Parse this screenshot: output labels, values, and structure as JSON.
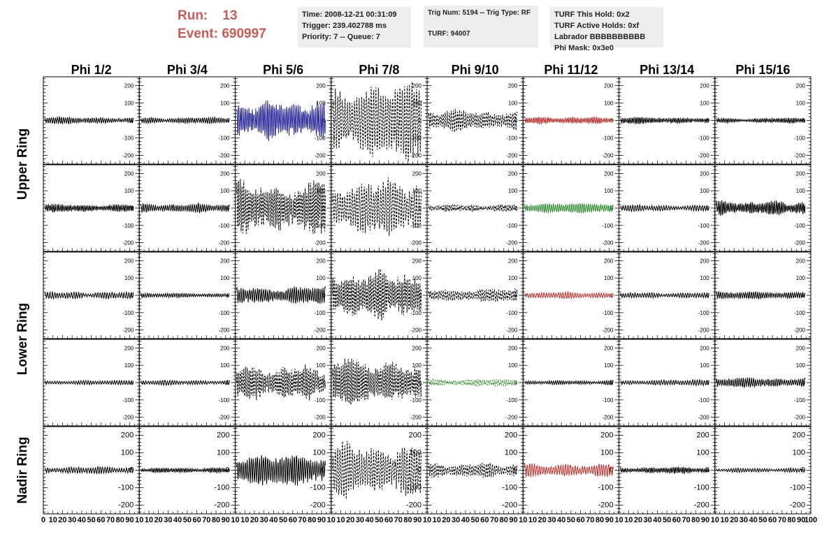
{
  "header": {
    "run_label": "Run:",
    "run_value": "13",
    "event_label": "Event:",
    "event_value": "690997",
    "time": "Time: 2008-12-21 00:31:09",
    "trigger": "Trigger: 239.402788 ms",
    "priority": "Priority: 7 -- Queue: 7",
    "trig_num": "Trig Num: 5194 -- Trig Type: RF",
    "turf": "TURF: 94007",
    "turf_hold": "TURF This Hold: 0x2",
    "turf_active": "TURF Active Holds: 0xf",
    "labrador": "Labrador BBBBBBBBBB",
    "phi_mask": "Phi Mask: 0x3e0"
  },
  "chart_data": {
    "type": "line",
    "columns": [
      "Phi 1/2",
      "Phi 3/4",
      "Phi 5/6",
      "Phi 7/8",
      "Phi 9/10",
      "Phi 11/12",
      "Phi 13/14",
      "Phi 15/16"
    ],
    "rows": [
      "Upper Ring",
      "Lower Ring",
      "Nadir Ring"
    ],
    "xlim": [
      0,
      100
    ],
    "ylim": [
      -250,
      250
    ],
    "y_ticks": [
      -200,
      -100,
      0,
      100,
      200
    ],
    "x_ticks": [
      0,
      10,
      20,
      30,
      40,
      50,
      60,
      70,
      80,
      90,
      100
    ],
    "x_tick_labels": [
      "0",
      "10",
      "20",
      "30",
      "40",
      "50",
      "60",
      "70",
      "80",
      "90",
      "100"
    ],
    "panel_x_tick_labels": [
      "10",
      "20",
      "30",
      "40",
      "50",
      "60",
      "70",
      "80",
      "90",
      "10"
    ],
    "colors": {
      "solid": "#000000",
      "blue": "#2a2a9a",
      "red": "#c0302c",
      "green": "#2e8b2e"
    },
    "panels": [
      [
        {
          "a": 20,
          "s": "solid",
          "c": "solid"
        },
        {
          "a": 18,
          "s": "solid",
          "c": "solid"
        },
        {
          "a": 110,
          "s": "solid",
          "c": "blue"
        },
        {
          "a": 210,
          "s": "dashed",
          "c": "solid"
        },
        {
          "a": 60,
          "s": "dashed",
          "c": "solid"
        },
        {
          "a": 20,
          "s": "solid",
          "c": "red"
        },
        {
          "a": 18,
          "s": "solid",
          "c": "solid"
        },
        {
          "a": 14,
          "s": "solid",
          "c": "solid"
        }
      ],
      [
        {
          "a": 22,
          "s": "solid",
          "c": "solid"
        },
        {
          "a": 25,
          "s": "solid",
          "c": "solid"
        },
        {
          "a": 170,
          "s": "dashed",
          "c": "solid"
        },
        {
          "a": 160,
          "s": "dashed",
          "c": "solid"
        },
        {
          "a": 20,
          "s": "dashed",
          "c": "solid"
        },
        {
          "a": 28,
          "s": "solid",
          "c": "green"
        },
        {
          "a": 18,
          "s": "solid",
          "c": "solid"
        },
        {
          "a": 40,
          "s": "solid",
          "c": "solid"
        }
      ],
      [
        {
          "a": 20,
          "s": "solid",
          "c": "solid"
        },
        {
          "a": 12,
          "s": "solid",
          "c": "solid"
        },
        {
          "a": 50,
          "s": "solid",
          "c": "solid"
        },
        {
          "a": 140,
          "s": "dashed",
          "c": "solid"
        },
        {
          "a": 40,
          "s": "dashed",
          "c": "solid"
        },
        {
          "a": 18,
          "s": "solid",
          "c": "red"
        },
        {
          "a": 15,
          "s": "solid",
          "c": "solid"
        },
        {
          "a": 20,
          "s": "solid",
          "c": "solid"
        }
      ],
      [
        {
          "a": 12,
          "s": "solid",
          "c": "solid"
        },
        {
          "a": 14,
          "s": "solid",
          "c": "solid"
        },
        {
          "a": 100,
          "s": "dashed",
          "c": "solid"
        },
        {
          "a": 140,
          "s": "dashed",
          "c": "solid"
        },
        {
          "a": 20,
          "s": "dashed",
          "c": "green"
        },
        {
          "a": 12,
          "s": "solid",
          "c": "solid"
        },
        {
          "a": 15,
          "s": "solid",
          "c": "solid"
        },
        {
          "a": 28,
          "s": "solid",
          "c": "solid"
        }
      ],
      [
        {
          "a": 20,
          "s": "solid",
          "c": "solid"
        },
        {
          "a": 14,
          "s": "solid",
          "c": "solid"
        },
        {
          "a": 85,
          "s": "solid",
          "c": "solid"
        },
        {
          "a": 150,
          "s": "dashed",
          "c": "solid"
        },
        {
          "a": 40,
          "s": "dashed",
          "c": "solid"
        },
        {
          "a": 40,
          "s": "solid",
          "c": "red"
        },
        {
          "a": 18,
          "s": "solid",
          "c": "solid"
        },
        {
          "a": 12,
          "s": "solid",
          "c": "solid"
        }
      ]
    ]
  }
}
